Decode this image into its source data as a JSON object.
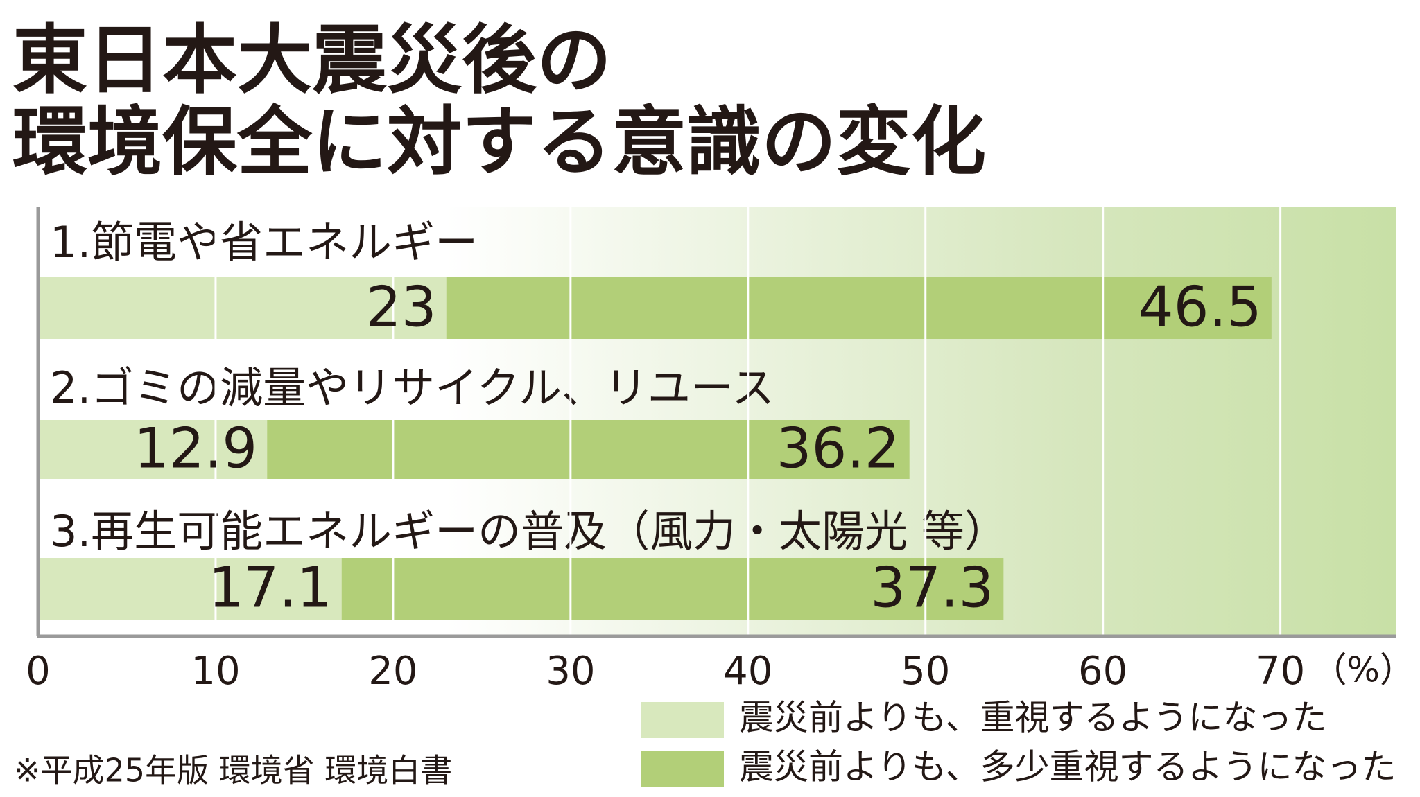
{
  "chart_data": {
    "type": "bar",
    "orientation": "horizontal",
    "stacked": true,
    "title": [
      "東日本大震災後の",
      "環境保全に対する意識の変化"
    ],
    "categories": [
      "1.節電や省エネルギー",
      "2.ゴミの減量やリサイクル、リユース",
      "3.再生可能エネルギーの普及（風力・太陽光 等）"
    ],
    "series": [
      {
        "name": "震災前よりも、重視するようになった",
        "color": "#d8e8bd",
        "values": [
          23,
          12.9,
          17.1
        ]
      },
      {
        "name": "震災前よりも、多少重視するようになった",
        "color": "#b2cf78",
        "values": [
          46.5,
          36.2,
          37.3
        ]
      }
    ],
    "xlim": [
      0,
      76.5
    ],
    "xticks": [
      0,
      10,
      20,
      30,
      40,
      50,
      60,
      70
    ],
    "x_unit": "（%）",
    "grid": true,
    "legend": "bottom-right",
    "source": "※平成25年版 環境省 環境白書"
  }
}
